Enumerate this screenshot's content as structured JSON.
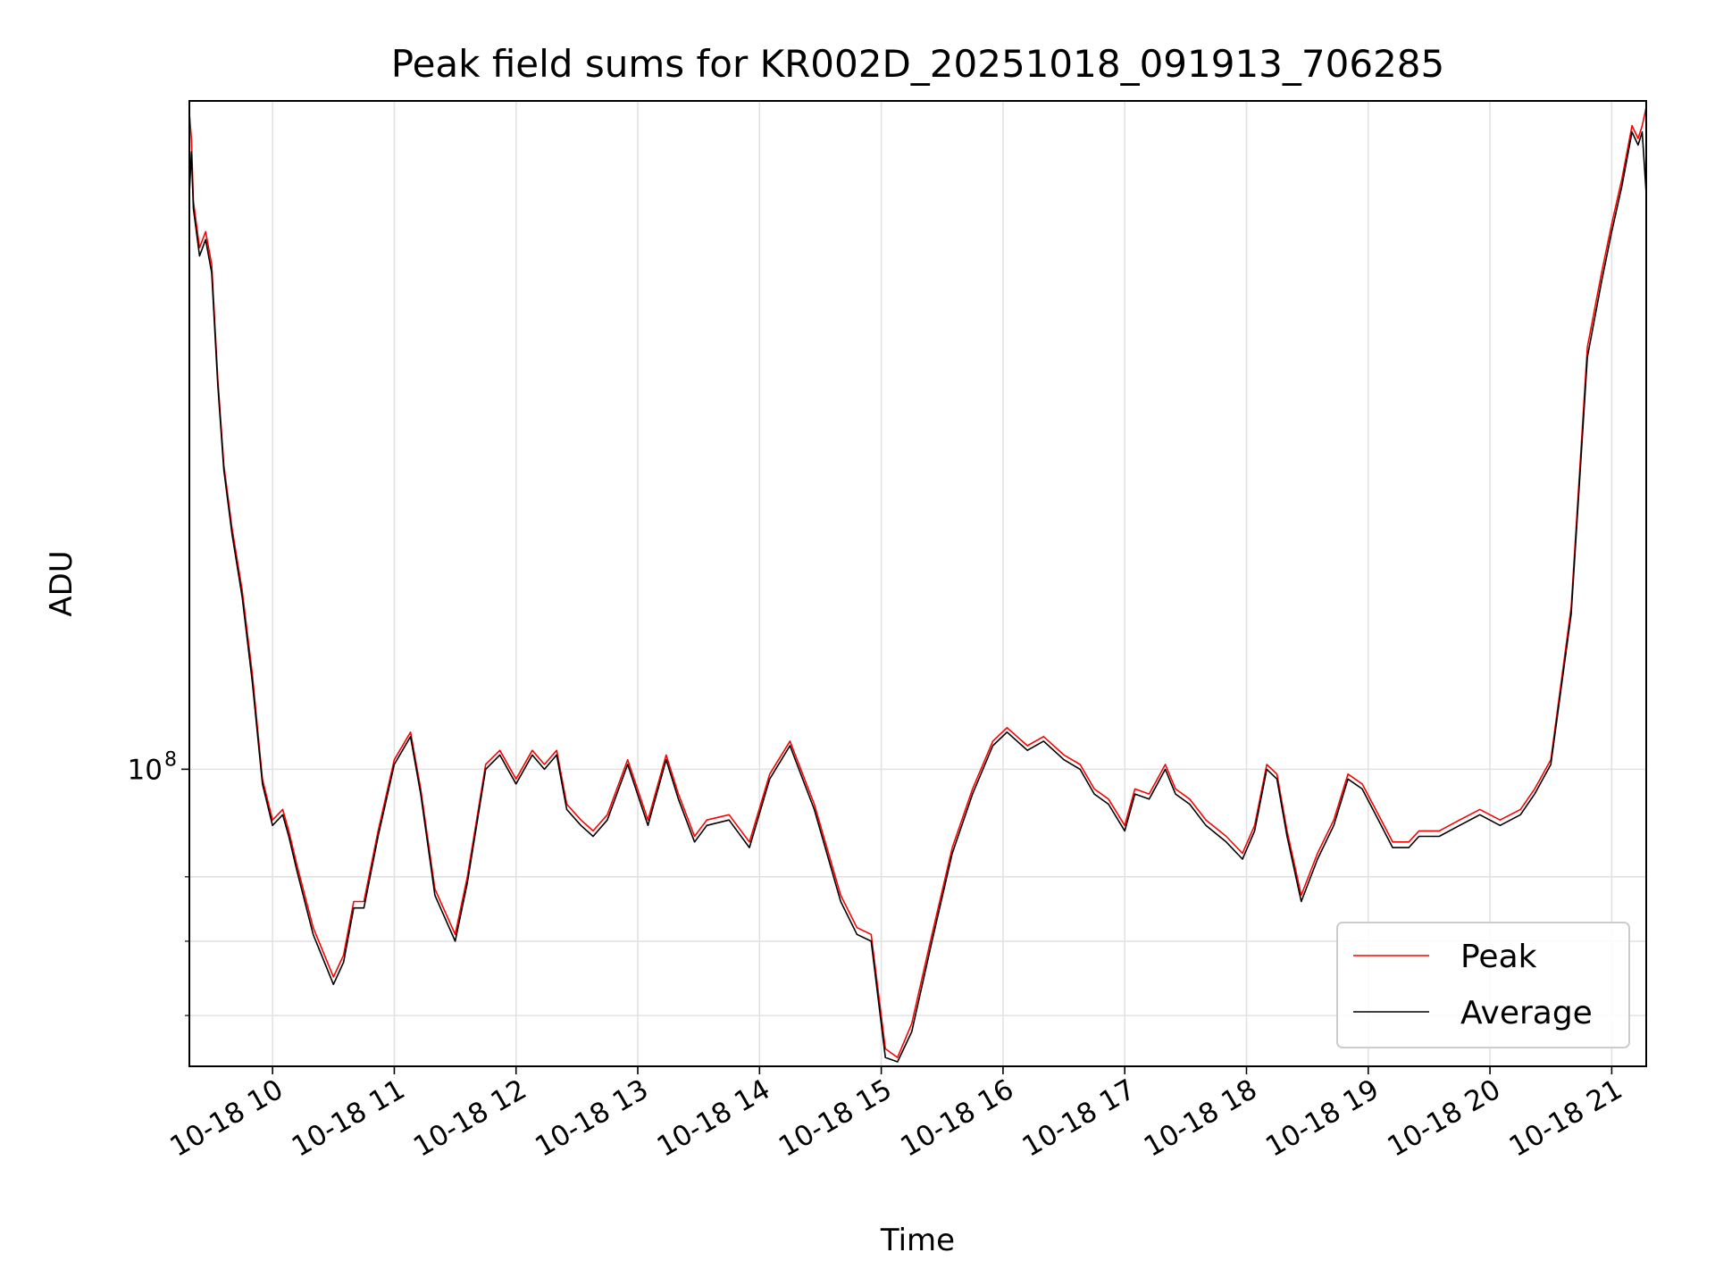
{
  "chart_data": {
    "type": "line",
    "title": "Peak field sums for KR002D_20251018_091913_706285",
    "xlabel": "Time",
    "ylabel": "ADU",
    "y_scale": "log",
    "xlim": [
      "2025-10-18 09:19",
      "2025-10-18 21:17"
    ],
    "ylim": [
      54000000.0,
      400000000.0
    ],
    "x_ticks": [
      "2025-10-18 10:00",
      "2025-10-18 11:00",
      "2025-10-18 12:00",
      "2025-10-18 13:00",
      "2025-10-18 14:00",
      "2025-10-18 15:00",
      "2025-10-18 16:00",
      "2025-10-18 17:00",
      "2025-10-18 18:00",
      "2025-10-18 19:00",
      "2025-10-18 20:00",
      "2025-10-18 21:00"
    ],
    "x_tick_labels": [
      "10-18 10",
      "10-18 11",
      "10-18 12",
      "10-18 13",
      "10-18 14",
      "10-18 15",
      "10-18 16",
      "10-18 17",
      "10-18 18",
      "10-18 19",
      "10-18 20",
      "10-18 21"
    ],
    "y_major_ticks": [
      100000000
    ],
    "y_major_tick_labels": [
      "10"
    ],
    "y_major_tick_exponents": [
      "8"
    ],
    "y_minor_ticks": [
      60000000,
      70000000,
      80000000
    ],
    "grid": true,
    "legend_position": "lower right",
    "series": [
      {
        "name": "Peak",
        "color": "#ff0000",
        "x": [
          "2025-10-18 09:19",
          "2025-10-18 09:20",
          "2025-10-18 09:21",
          "2025-10-18 09:24",
          "2025-10-18 09:27",
          "2025-10-18 09:30",
          "2025-10-18 09:33",
          "2025-10-18 09:36",
          "2025-10-18 09:40",
          "2025-10-18 09:45",
          "2025-10-18 09:50",
          "2025-10-18 09:55",
          "2025-10-18 10:00",
          "2025-10-18 10:05",
          "2025-10-18 10:08",
          "2025-10-18 10:12",
          "2025-10-18 10:20",
          "2025-10-18 10:30",
          "2025-10-18 10:35",
          "2025-10-18 10:40",
          "2025-10-18 10:45",
          "2025-10-18 10:52",
          "2025-10-18 11:00",
          "2025-10-18 11:08",
          "2025-10-18 11:13",
          "2025-10-18 11:20",
          "2025-10-18 11:30",
          "2025-10-18 11:36",
          "2025-10-18 11:45",
          "2025-10-18 11:52",
          "2025-10-18 12:00",
          "2025-10-18 12:08",
          "2025-10-18 12:14",
          "2025-10-18 12:20",
          "2025-10-18 12:25",
          "2025-10-18 12:32",
          "2025-10-18 12:38",
          "2025-10-18 12:45",
          "2025-10-18 12:55",
          "2025-10-18 13:05",
          "2025-10-18 13:14",
          "2025-10-18 13:20",
          "2025-10-18 13:28",
          "2025-10-18 13:34",
          "2025-10-18 13:45",
          "2025-10-18 13:55",
          "2025-10-18 14:05",
          "2025-10-18 14:15",
          "2025-10-18 14:27",
          "2025-10-18 14:40",
          "2025-10-18 14:48",
          "2025-10-18 14:55",
          "2025-10-18 15:02",
          "2025-10-18 15:08",
          "2025-10-18 15:15",
          "2025-10-18 15:25",
          "2025-10-18 15:35",
          "2025-10-18 15:45",
          "2025-10-18 15:55",
          "2025-10-18 16:02",
          "2025-10-18 16:12",
          "2025-10-18 16:20",
          "2025-10-18 16:30",
          "2025-10-18 16:38",
          "2025-10-18 16:45",
          "2025-10-18 16:52",
          "2025-10-18 17:00",
          "2025-10-18 17:05",
          "2025-10-18 17:12",
          "2025-10-18 17:20",
          "2025-10-18 17:25",
          "2025-10-18 17:32",
          "2025-10-18 17:40",
          "2025-10-18 17:50",
          "2025-10-18 17:58",
          "2025-10-18 18:04",
          "2025-10-18 18:10",
          "2025-10-18 18:15",
          "2025-10-18 18:20",
          "2025-10-18 18:27",
          "2025-10-18 18:35",
          "2025-10-18 18:43",
          "2025-10-18 18:50",
          "2025-10-18 18:57",
          "2025-10-18 19:05",
          "2025-10-18 19:12",
          "2025-10-18 19:20",
          "2025-10-18 19:25",
          "2025-10-18 19:35",
          "2025-10-18 19:45",
          "2025-10-18 19:55",
          "2025-10-18 20:05",
          "2025-10-18 20:15",
          "2025-10-18 20:22",
          "2025-10-18 20:30",
          "2025-10-18 20:40",
          "2025-10-18 20:48",
          "2025-10-18 20:55",
          "2025-10-18 21:00",
          "2025-10-18 21:05",
          "2025-10-18 21:10",
          "2025-10-18 21:13",
          "2025-10-18 21:15",
          "2025-10-18 21:17"
        ],
        "values": [
          390000000,
          370000000,
          325000000,
          295000000,
          305000000,
          285000000,
          225000000,
          188000000,
          165000000,
          145000000,
          122000000,
          98000000,
          90000000,
          92000000,
          88000000,
          82000000,
          72000000,
          65000000,
          68000000,
          76000000,
          76000000,
          88000000,
          102000000,
          108000000,
          96000000,
          78000000,
          71000000,
          80000000,
          101000000,
          104000000,
          98000000,
          104000000,
          101000000,
          104000000,
          93000000,
          90000000,
          88000000,
          91000000,
          102000000,
          90000000,
          103000000,
          95000000,
          87000000,
          90000000,
          91000000,
          86000000,
          99000000,
          106000000,
          93000000,
          77000000,
          72000000,
          71000000,
          56000000,
          55000000,
          59000000,
          71000000,
          85000000,
          96000000,
          106000000,
          109000000,
          105000000,
          107000000,
          103000000,
          101000000,
          96000000,
          94000000,
          89000000,
          96000000,
          95000000,
          101000000,
          96000000,
          94000000,
          90000000,
          87000000,
          84000000,
          89000000,
          101000000,
          99000000,
          88000000,
          77000000,
          84000000,
          90000000,
          99000000,
          97000000,
          91000000,
          86000000,
          86000000,
          88000000,
          88000000,
          90000000,
          92000000,
          90000000,
          92000000,
          96000000,
          102000000,
          140000000,
          240000000,
          280000000,
          310000000,
          340000000,
          380000000,
          370000000,
          380000000,
          395000000
        ]
      },
      {
        "name": "Average",
        "color": "#000000",
        "x": [
          "2025-10-18 09:19",
          "2025-10-18 09:20",
          "2025-10-18 09:21",
          "2025-10-18 09:24",
          "2025-10-18 09:27",
          "2025-10-18 09:30",
          "2025-10-18 09:33",
          "2025-10-18 09:36",
          "2025-10-18 09:40",
          "2025-10-18 09:45",
          "2025-10-18 09:50",
          "2025-10-18 09:55",
          "2025-10-18 10:00",
          "2025-10-18 10:05",
          "2025-10-18 10:08",
          "2025-10-18 10:12",
          "2025-10-18 10:20",
          "2025-10-18 10:30",
          "2025-10-18 10:35",
          "2025-10-18 10:40",
          "2025-10-18 10:45",
          "2025-10-18 10:52",
          "2025-10-18 11:00",
          "2025-10-18 11:08",
          "2025-10-18 11:13",
          "2025-10-18 11:20",
          "2025-10-18 11:30",
          "2025-10-18 11:36",
          "2025-10-18 11:45",
          "2025-10-18 11:52",
          "2025-10-18 12:00",
          "2025-10-18 12:08",
          "2025-10-18 12:14",
          "2025-10-18 12:20",
          "2025-10-18 12:25",
          "2025-10-18 12:32",
          "2025-10-18 12:38",
          "2025-10-18 12:45",
          "2025-10-18 12:55",
          "2025-10-18 13:05",
          "2025-10-18 13:14",
          "2025-10-18 13:20",
          "2025-10-18 13:28",
          "2025-10-18 13:34",
          "2025-10-18 13:45",
          "2025-10-18 13:55",
          "2025-10-18 14:05",
          "2025-10-18 14:15",
          "2025-10-18 14:27",
          "2025-10-18 14:40",
          "2025-10-18 14:48",
          "2025-10-18 14:55",
          "2025-10-18 15:02",
          "2025-10-18 15:08",
          "2025-10-18 15:15",
          "2025-10-18 15:25",
          "2025-10-18 15:35",
          "2025-10-18 15:45",
          "2025-10-18 15:55",
          "2025-10-18 16:02",
          "2025-10-18 16:12",
          "2025-10-18 16:20",
          "2025-10-18 16:30",
          "2025-10-18 16:38",
          "2025-10-18 16:45",
          "2025-10-18 16:52",
          "2025-10-18 17:00",
          "2025-10-18 17:05",
          "2025-10-18 17:12",
          "2025-10-18 17:20",
          "2025-10-18 17:25",
          "2025-10-18 17:32",
          "2025-10-18 17:40",
          "2025-10-18 17:50",
          "2025-10-18 17:58",
          "2025-10-18 18:04",
          "2025-10-18 18:10",
          "2025-10-18 18:15",
          "2025-10-18 18:20",
          "2025-10-18 18:27",
          "2025-10-18 18:35",
          "2025-10-18 18:43",
          "2025-10-18 18:50",
          "2025-10-18 18:57",
          "2025-10-18 19:05",
          "2025-10-18 19:12",
          "2025-10-18 19:20",
          "2025-10-18 19:25",
          "2025-10-18 19:35",
          "2025-10-18 19:45",
          "2025-10-18 19:55",
          "2025-10-18 20:05",
          "2025-10-18 20:15",
          "2025-10-18 20:22",
          "2025-10-18 20:30",
          "2025-10-18 20:40",
          "2025-10-18 20:48",
          "2025-10-18 20:55",
          "2025-10-18 21:00",
          "2025-10-18 21:05",
          "2025-10-18 21:10",
          "2025-10-18 21:13",
          "2025-10-18 21:15",
          "2025-10-18 21:17"
        ],
        "values": [
          330000000,
          360000000,
          320000000,
          290000000,
          300000000,
          280000000,
          222000000,
          186000000,
          163000000,
          143000000,
          120000000,
          97000000,
          89000000,
          91000000,
          87000000,
          81000000,
          71000000,
          64000000,
          67000000,
          75000000,
          75000000,
          87000000,
          101000000,
          107000000,
          95000000,
          77000000,
          70000000,
          79000000,
          100000000,
          103000000,
          97000000,
          103000000,
          100000000,
          103000000,
          92000000,
          89000000,
          87000000,
          90000000,
          101000000,
          89000000,
          102000000,
          94000000,
          86000000,
          89000000,
          90000000,
          85000000,
          98000000,
          105000000,
          92000000,
          76000000,
          71000000,
          70000000,
          55000000,
          54500000,
          58000000,
          70000000,
          84000000,
          95000000,
          105000000,
          108000000,
          104000000,
          106000000,
          102000000,
          100000000,
          95000000,
          93000000,
          88000000,
          95000000,
          94000000,
          100000000,
          95000000,
          93000000,
          89000000,
          86000000,
          83000000,
          88000000,
          100000000,
          98000000,
          87000000,
          76000000,
          83000000,
          89000000,
          98000000,
          96000000,
          90000000,
          85000000,
          85000000,
          87000000,
          87000000,
          89000000,
          91000000,
          89000000,
          91000000,
          95000000,
          101000000,
          138000000,
          235000000,
          275000000,
          305000000,
          335000000,
          375000000,
          365000000,
          375000000,
          330000000
        ]
      }
    ]
  }
}
